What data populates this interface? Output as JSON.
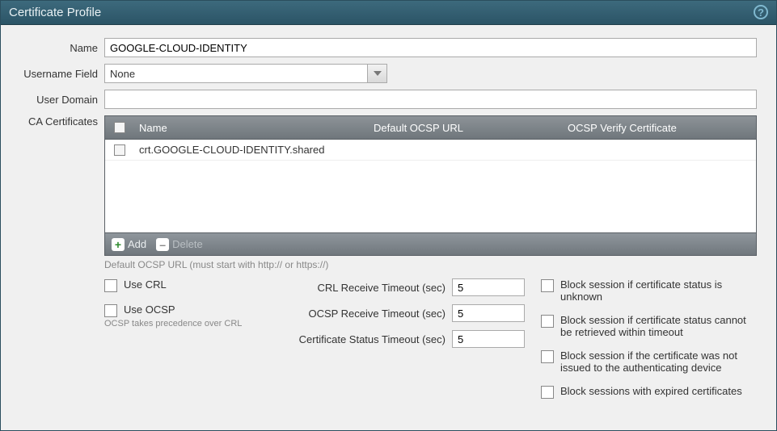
{
  "window": {
    "title": "Certificate Profile"
  },
  "form": {
    "name_label": "Name",
    "name_value": "GOOGLE-CLOUD-IDENTITY",
    "username_field_label": "Username Field",
    "username_field_value": "None",
    "user_domain_label": "User Domain",
    "user_domain_value": "",
    "ca_label": "CA Certificates"
  },
  "ca_table": {
    "columns": {
      "name": "Name",
      "ocsp_url": "Default OCSP URL",
      "ocsp_verify": "OCSP Verify Certificate"
    },
    "rows": [
      {
        "name": "crt.GOOGLE-CLOUD-IDENTITY.shared",
        "ocsp_url": "",
        "ocsp_verify": ""
      }
    ],
    "add_label": "Add",
    "delete_label": "Delete",
    "hint": "Default OCSP URL (must start with http:// or https://)"
  },
  "options": {
    "use_crl": "Use CRL",
    "use_ocsp": "Use OCSP",
    "ocsp_precedence": "OCSP takes precedence over CRL",
    "crl_timeout_label": "CRL Receive Timeout (sec)",
    "crl_timeout_value": "5",
    "ocsp_timeout_label": "OCSP Receive Timeout (sec)",
    "ocsp_timeout_value": "5",
    "cert_status_timeout_label": "Certificate Status Timeout (sec)",
    "cert_status_timeout_value": "5",
    "block_unknown": "Block session if certificate status is unknown",
    "block_timeout": "Block session if certificate status cannot be retrieved within timeout",
    "block_not_issued": "Block session if the certificate was not issued to the authenticating device",
    "block_expired": "Block sessions with expired certificates"
  },
  "colors": {
    "header_bg": "#356172",
    "table_hdr_bg": "#7d848a",
    "accent_add": "#2e8b2e"
  }
}
